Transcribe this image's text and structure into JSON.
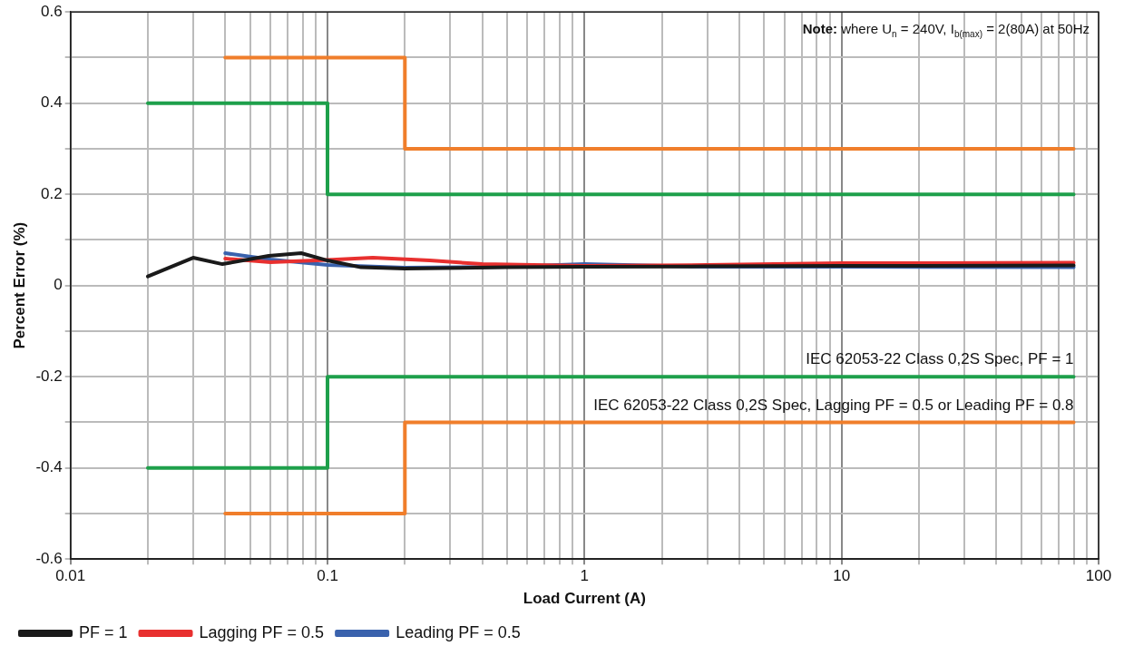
{
  "chart_data": {
    "type": "line",
    "xlabel": "Load Current (A)",
    "ylabel": "Percent Error (%)",
    "log": "x",
    "grid": true,
    "legend": "bottom left",
    "xlim": [
      0.01,
      100
    ],
    "ylim": [
      -0.6,
      0.6
    ],
    "xticks": [
      0.01,
      {
        "value": 0.02,
        "label": null
      },
      {
        "value": 0.03,
        "label": null
      },
      {
        "value": 0.04,
        "label": null
      },
      {
        "value": 0.05,
        "label": null
      },
      {
        "value": 0.06,
        "label": null
      },
      {
        "value": 0.07,
        "label": null
      },
      {
        "value": 0.08,
        "label": null
      },
      {
        "value": 0.09,
        "label": null
      },
      0.1,
      {
        "value": 0.2,
        "label": null
      },
      {
        "value": 0.3,
        "label": null
      },
      {
        "value": 0.4,
        "label": null
      },
      {
        "value": 0.5,
        "label": null
      },
      {
        "value": 0.6,
        "label": null
      },
      {
        "value": 0.7,
        "label": null
      },
      {
        "value": 0.8,
        "label": null
      },
      {
        "value": 0.9,
        "label": null
      },
      1,
      {
        "value": 2,
        "label": null
      },
      {
        "value": 3,
        "label": null
      },
      {
        "value": 4,
        "label": null
      },
      {
        "value": 5,
        "label": null
      },
      {
        "value": 6,
        "label": null
      },
      {
        "value": 7,
        "label": null
      },
      {
        "value": 8,
        "label": null
      },
      {
        "value": 9,
        "label": null
      },
      10,
      {
        "value": 20,
        "label": null
      },
      {
        "value": 30,
        "label": null
      },
      {
        "value": 40,
        "label": null
      },
      {
        "value": 50,
        "label": null
      },
      {
        "value": 60,
        "label": null
      },
      {
        "value": 70,
        "label": null
      },
      {
        "value": 80,
        "label": null
      },
      {
        "value": 90,
        "label": null
      },
      100
    ],
    "yticks": [
      -0.6,
      {
        "value": -0.5,
        "label": null
      },
      -0.4,
      {
        "value": -0.3,
        "label": null
      },
      -0.2,
      {
        "value": -0.1,
        "label": null
      },
      0,
      {
        "value": 0.1,
        "label": null
      },
      0.2,
      {
        "value": 0.3,
        "label": null
      },
      0.4,
      {
        "value": 0.5,
        "label": null
      },
      0.6
    ],
    "series": [
      {
        "color": "#1ea04b",
        "x": [
          0.02,
          0.1,
          0.1,
          80
        ],
        "values": [
          0.4,
          0.4,
          0.2,
          0.2
        ]
      },
      {
        "color": "#1ea04b",
        "x": [
          0.02,
          0.1,
          0.1,
          80
        ],
        "values": [
          -0.4,
          -0.4,
          -0.2,
          -0.2
        ]
      },
      {
        "color": "#f07e2b",
        "x": [
          0.04,
          0.2,
          0.2,
          80
        ],
        "values": [
          0.5,
          0.5,
          0.3,
          0.3
        ]
      },
      {
        "color": "#f07e2b",
        "x": [
          0.04,
          0.2,
          0.2,
          80
        ],
        "values": [
          -0.5,
          -0.5,
          -0.3,
          -0.3
        ]
      },
      {
        "name": "PF = 1",
        "color": "#1a1a1a",
        "x": [
          0.02,
          0.03,
          0.039,
          0.059,
          0.079,
          0.1,
          0.135,
          0.2,
          0.5,
          1,
          3,
          10,
          80
        ],
        "values": [
          0.02,
          0.061,
          0.047,
          0.065,
          0.071,
          0.055,
          0.04,
          0.037,
          0.04,
          0.041,
          0.042,
          0.043,
          0.044
        ]
      },
      {
        "name": "Lagging PF = 0.5",
        "color": "#e8302f",
        "x": [
          0.04,
          0.06,
          0.1,
          0.15,
          0.25,
          0.4,
          1,
          3,
          10,
          80
        ],
        "values": [
          0.059,
          0.051,
          0.056,
          0.061,
          0.055,
          0.047,
          0.043,
          0.045,
          0.049,
          0.05
        ]
      },
      {
        "name": "Leading PF = 0.5",
        "color": "#3a62ad",
        "x": [
          0.04,
          0.06,
          0.1,
          0.2,
          0.5,
          1,
          3,
          10,
          80
        ],
        "values": [
          0.071,
          0.057,
          0.045,
          0.039,
          0.041,
          0.047,
          0.041,
          0.041,
          0.04
        ]
      }
    ],
    "annotations": [
      "Note: where U$_{n}$ = 240V, I$_{b(max)}$ = 2(80A) at 50Hz",
      {
        "text": "IEC 62053-22 Class 0,2S Spec, PF = 1",
        "x": 80,
        "y": -0.2
      },
      {
        "text": "IEC 62053-22 Class 0,2S Spec, Lagging PF = 0.5 or Leading PF = 0.8",
        "x": 80,
        "y": -0.3
      }
    ]
  }
}
